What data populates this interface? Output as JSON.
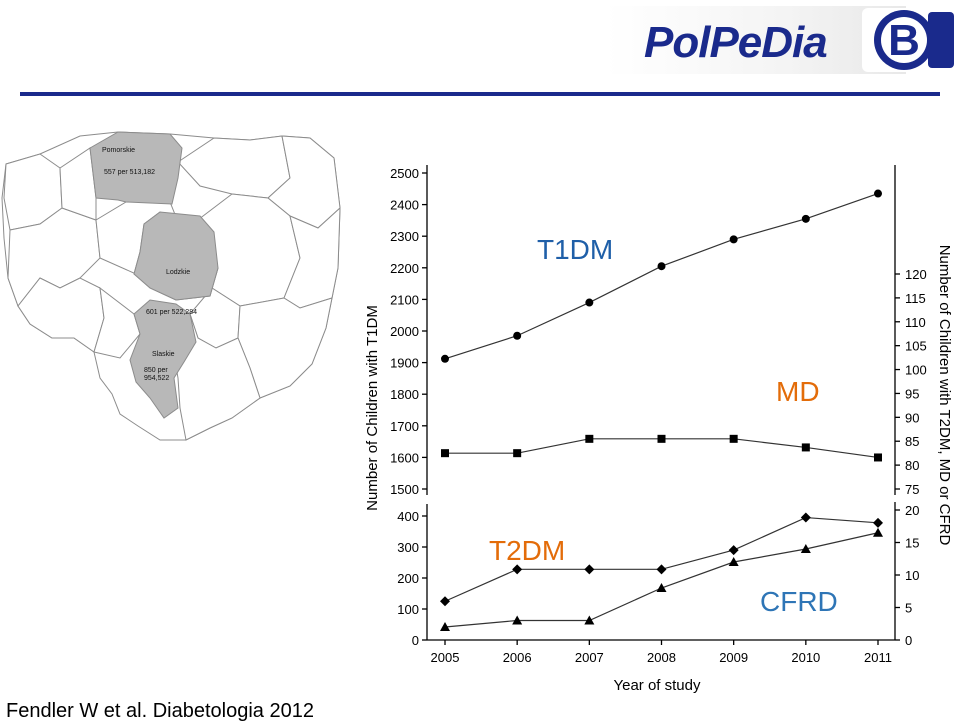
{
  "logo": {
    "text": "PolPeDia",
    "mark_letter": "B",
    "colors": {
      "text": "#1a2a8c",
      "mark": "#1a2a8c"
    }
  },
  "citation": "Fendler W et al. Diabetologia 2012",
  "map": {
    "regions": [
      {
        "name": "Pomorskie",
        "stat": "557 per 513,182"
      },
      {
        "name": "Lodzkie",
        "stat": "601 per 522,284"
      },
      {
        "name": "Slaskie",
        "stat_line1": "850 per",
        "stat_line2": "954,522"
      }
    ],
    "colors": {
      "highlight": "#b8b8b8",
      "border": "#8c8c8c"
    }
  },
  "chart_data": {
    "type": "line",
    "xlabel": "Year of study",
    "ylabel_left": "Number of Children with T1DM",
    "ylabel_right": "Number of Children with T2DM, MD or CFRD",
    "x": [
      2005,
      2006,
      2007,
      2008,
      2009,
      2010,
      2011
    ],
    "x_ticks": [
      "2005",
      "2006",
      "2007",
      "2008",
      "2009",
      "2010",
      "2011"
    ],
    "left_axis_ticks_upper": [
      "1500",
      "1600",
      "1700",
      "1800",
      "1900",
      "2000",
      "2100",
      "2200",
      "2300",
      "2400",
      "2500"
    ],
    "left_axis_ticks_lower": [
      "0",
      "100",
      "200",
      "300",
      "400"
    ],
    "right_axis_ticks_upper": [
      "75",
      "80",
      "85",
      "90",
      "95",
      "100",
      "105",
      "110",
      "115",
      "120"
    ],
    "right_axis_ticks_lower": [
      "0",
      "5",
      "10",
      "15",
      "20"
    ],
    "left_upper_ylim": [
      1500,
      2500
    ],
    "left_lower_ylim": [
      0,
      400
    ],
    "right_upper_ylim": [
      75,
      120
    ],
    "right_lower_ylim": [
      0,
      20
    ],
    "series": [
      {
        "name": "T1DM",
        "axis": "left",
        "marker": "circle",
        "label_color": "#1f5fa8",
        "values": [
          1912,
          1985,
          2090,
          2205,
          2290,
          2355,
          2435
        ]
      },
      {
        "name": "MD",
        "axis": "right",
        "marker": "square",
        "label_color": "#e36c09",
        "values": [
          82.5,
          82.5,
          85.5,
          85.5,
          85.5,
          83.7,
          81.6
        ]
      },
      {
        "name": "T2DM",
        "axis": "left",
        "marker": "diamond",
        "label_color": "#e36c09",
        "values": [
          125,
          228,
          228,
          228,
          290,
          395,
          378
        ]
      },
      {
        "name": "CFRD",
        "axis": "right",
        "marker": "triangle",
        "label_color": "#2e75b6",
        "values": [
          2,
          3,
          3,
          8,
          12,
          14,
          16.5
        ]
      }
    ],
    "grid": false,
    "legend": "inline labels"
  }
}
